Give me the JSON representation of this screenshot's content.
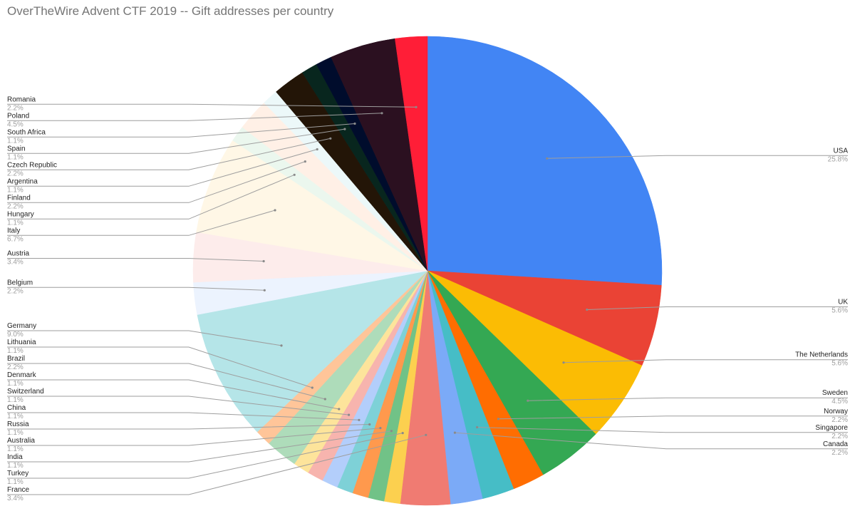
{
  "chart_data": {
    "type": "pie",
    "title": "OverTheWire Advent CTF 2019 -- Gift addresses per country",
    "start_angle_deg": 0,
    "direction": "clockwise",
    "legend": "labels with leader lines on both sides",
    "slices": [
      {
        "name": "USA",
        "pct": "25.8%",
        "value": 25.8,
        "color": "#4285f4"
      },
      {
        "name": "UK",
        "pct": "5.6%",
        "value": 5.6,
        "color": "#ea4335"
      },
      {
        "name": "The Netherlands",
        "pct": "5.6%",
        "value": 5.6,
        "color": "#fbbc04"
      },
      {
        "name": "Sweden",
        "pct": "4.5%",
        "value": 4.5,
        "color": "#34a853"
      },
      {
        "name": "Norway",
        "pct": "2.2%",
        "value": 2.2,
        "color": "#ff6d01"
      },
      {
        "name": "Singapore",
        "pct": "2.2%",
        "value": 2.2,
        "color": "#46bdc6"
      },
      {
        "name": "Canada",
        "pct": "2.2%",
        "value": 2.2,
        "color": "#7baaf7"
      },
      {
        "name": "France",
        "pct": "3.4%",
        "value": 3.4,
        "color": "#f07b72"
      },
      {
        "name": "Turkey",
        "pct": "1.1%",
        "value": 1.1,
        "color": "#fcd04f"
      },
      {
        "name": "India",
        "pct": "1.1%",
        "value": 1.1,
        "color": "#71c287"
      },
      {
        "name": "Australia",
        "pct": "1.1%",
        "value": 1.1,
        "color": "#ff994d"
      },
      {
        "name": "Russia",
        "pct": "1.1%",
        "value": 1.1,
        "color": "#7ed1d7"
      },
      {
        "name": "China",
        "pct": "1.1%",
        "value": 1.1,
        "color": "#b3cefb"
      },
      {
        "name": "Switzerland",
        "pct": "1.1%",
        "value": 1.1,
        "color": "#f7b4ae"
      },
      {
        "name": "Denmark",
        "pct": "1.1%",
        "value": 1.1,
        "color": "#fde49b"
      },
      {
        "name": "Brazil",
        "pct": "2.2%",
        "value": 2.2,
        "color": "#aedcba"
      },
      {
        "name": "Lithuania",
        "pct": "1.1%",
        "value": 1.1,
        "color": "#ffc599"
      },
      {
        "name": "Germany",
        "pct": "9.0%",
        "value": 9.0,
        "color": "#b5e5e8"
      },
      {
        "name": "Belgium",
        "pct": "2.2%",
        "value": 2.2,
        "color": "#ecf3fe"
      },
      {
        "name": "Austria",
        "pct": "3.4%",
        "value": 3.4,
        "color": "#fdeceb"
      },
      {
        "name": "Italy",
        "pct": "6.7%",
        "value": 6.7,
        "color": "#fff7e6"
      },
      {
        "name": "Hungary",
        "pct": "1.1%",
        "value": 1.1,
        "color": "#ebf7ee"
      },
      {
        "name": "Finland",
        "pct": "2.2%",
        "value": 2.2,
        "color": "#fff0e6"
      },
      {
        "name": "Argentina",
        "pct": "1.1%",
        "value": 1.1,
        "color": "#ecf8f9"
      },
      {
        "name": "Czech Republic",
        "pct": "2.2%",
        "value": 2.2,
        "color": "#231507"
      },
      {
        "name": "Spain",
        "pct": "1.1%",
        "value": 1.1,
        "color": "#08261e"
      },
      {
        "name": "South Africa",
        "pct": "1.1%",
        "value": 1.1,
        "color": "#000c2c"
      },
      {
        "name": "Poland",
        "pct": "4.5%",
        "value": 4.5,
        "color": "#2b1020"
      },
      {
        "name": "Romania",
        "pct": "2.2%",
        "value": 2.2,
        "color": "#ff1e37"
      }
    ]
  }
}
